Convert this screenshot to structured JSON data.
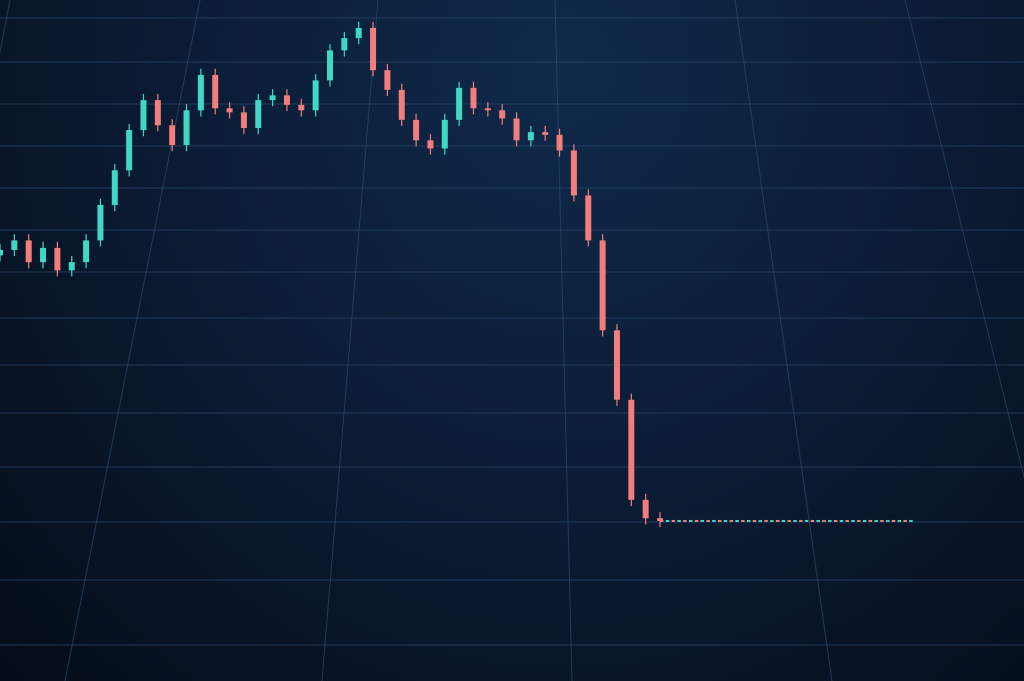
{
  "chart_data": {
    "type": "candlestick",
    "title": "",
    "xlabel": "",
    "ylabel": "",
    "ylim": [
      0,
      100
    ],
    "grid": true,
    "legend": "none",
    "colors": {
      "up": "#3fd8c4",
      "down": "#f27d7d",
      "grid": "#2a4a6e",
      "background": "#0b1d36"
    },
    "closes": [
      63.3,
      64.7,
      61.5,
      63.6,
      60.3,
      61.5,
      64.7,
      69.9,
      75.0,
      80.9,
      85.3,
      81.6,
      78.7,
      83.8,
      89.0,
      84.1,
      83.5,
      81.2,
      85.3,
      86.0,
      84.6,
      83.8,
      88.2,
      92.6,
      94.4,
      95.9,
      89.7,
      86.8,
      82.4,
      79.4,
      78.2,
      82.4,
      87.1,
      84.1,
      83.8,
      82.6,
      79.4,
      80.6,
      80.2,
      77.9,
      71.3,
      64.7,
      51.5,
      41.3,
      26.6,
      23.9,
      23.5
    ],
    "flat_tail": {
      "value": 23.5,
      "count": 44
    }
  }
}
